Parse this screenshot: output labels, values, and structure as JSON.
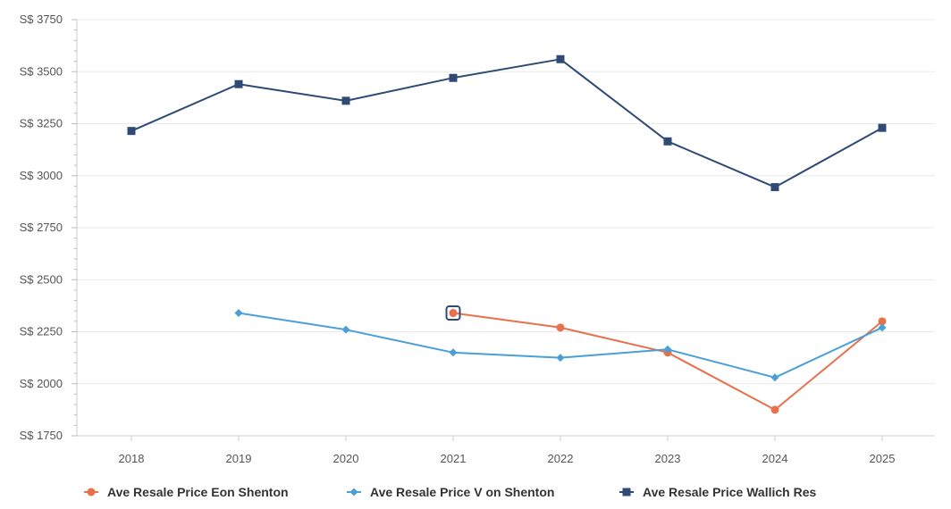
{
  "chart_data": {
    "type": "line",
    "title": "",
    "xlabel": "",
    "ylabel": "",
    "categories": [
      "2018",
      "2019",
      "2020",
      "2021",
      "2022",
      "2023",
      "2024",
      "2025"
    ],
    "y_tick_labels": [
      "S$ 1750",
      "S$ 2000",
      "S$ 2250",
      "S$ 2500",
      "S$ 2750",
      "S$ 3000",
      "S$ 3250",
      "S$ 3500",
      "S$ 3750"
    ],
    "y_ticks": [
      1750,
      2000,
      2250,
      2500,
      2750,
      3000,
      3250,
      3500,
      3750
    ],
    "ylim": [
      1750,
      3750
    ],
    "grid": true,
    "legend_position": "bottom",
    "series": [
      {
        "name": "Ave Resale Price Eon Shenton",
        "color": "#e8704a",
        "marker": "circle",
        "values": [
          null,
          null,
          null,
          2340,
          2270,
          2150,
          1875,
          2300
        ]
      },
      {
        "name": "Ave Resale Price V on Shenton",
        "color": "#4a9fd8",
        "marker": "diamond",
        "values": [
          null,
          2340,
          2260,
          2150,
          2125,
          2165,
          2030,
          2270
        ]
      },
      {
        "name": "Ave Resale Price Wallich Res",
        "color": "#2f4a74",
        "marker": "square",
        "values": [
          3215,
          3440,
          3360,
          3470,
          3560,
          3165,
          2945,
          3230
        ]
      }
    ]
  }
}
